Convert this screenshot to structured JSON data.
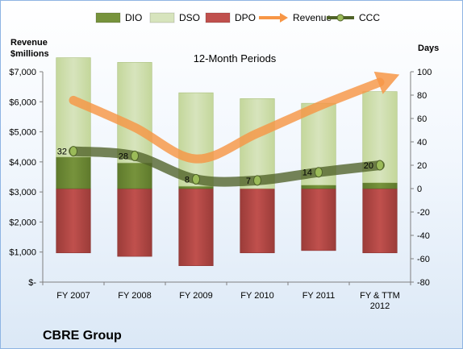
{
  "chart_data": {
    "type": "bar",
    "title": "12-Month Periods",
    "company": "CBRE Group",
    "left_axis_title": [
      "Revenue",
      "$millions"
    ],
    "right_axis_title": "Days",
    "left_ylim": [
      0,
      7000
    ],
    "left_ticks": [
      "$-",
      "$1,000",
      "$2,000",
      "$3,000",
      "$4,000",
      "$5,000",
      "$6,000",
      "$7,000"
    ],
    "right_ylim": [
      -80,
      100
    ],
    "right_ticks": [
      "-80",
      "-60",
      "-40",
      "-20",
      "0",
      "20",
      "40",
      "60",
      "80",
      "100"
    ],
    "categories": [
      [
        "FY 2007"
      ],
      [
        "FY 2008"
      ],
      [
        "FY 2009"
      ],
      [
        "FY 2010"
      ],
      [
        "FY 2011"
      ],
      [
        "FY & TTM",
        "2012"
      ]
    ],
    "grid": false,
    "legend_position": "top",
    "series": [
      {
        "name": "DIO",
        "type": "stacked-bar",
        "axis": "right",
        "color": "#77933c",
        "values": [
          27,
          22,
          2,
          0,
          3,
          5
        ]
      },
      {
        "name": "DSO",
        "type": "stacked-bar",
        "axis": "right",
        "color": "#d7e4bd",
        "values": [
          85,
          86,
          80,
          77,
          70,
          78
        ]
      },
      {
        "name": "DPO",
        "type": "negative-bar",
        "axis": "right",
        "color": "#c0504d",
        "values": [
          -55,
          -58,
          -66,
          -55,
          -53,
          -55
        ]
      },
      {
        "name": "Revenue",
        "type": "arrow-line",
        "axis": "left",
        "color": "#f79646",
        "values": [
          6050,
          5150,
          4100,
          4950,
          5850,
          6650
        ]
      },
      {
        "name": "CCC",
        "type": "line-marker",
        "axis": "right",
        "color": "#4f6228",
        "values": [
          32,
          28,
          8,
          7,
          14,
          20
        ],
        "labels": [
          "32",
          "28",
          "8",
          "7",
          "14",
          "20"
        ]
      }
    ]
  }
}
